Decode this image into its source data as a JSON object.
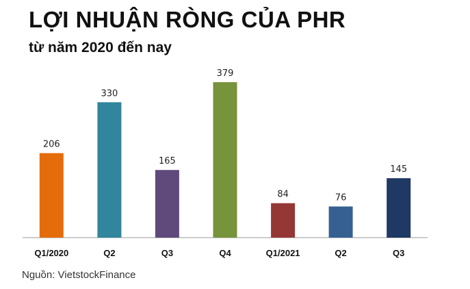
{
  "header": {
    "title": "LỢI NHUẬN RÒNG CỦA PHR",
    "subtitle": "từ năm 2020 đến nay"
  },
  "footer": {
    "source": "Nguồn: VietstockFinance"
  },
  "chart_data": {
    "type": "bar",
    "title": "LỢI NHUẬN RÒNG CỦA PHR",
    "subtitle": "từ năm 2020 đến nay",
    "categories": [
      "Q1/2020",
      "Q2",
      "Q3",
      "Q4",
      "Q1/2021",
      "Q2",
      "Q3"
    ],
    "values": [
      206,
      330,
      165,
      379,
      84,
      76,
      145
    ],
    "colors": [
      "#e46c0a",
      "#31859c",
      "#604a7b",
      "#77933c",
      "#953735",
      "#376092",
      "#1f3864"
    ],
    "ylim": [
      0,
      379
    ],
    "grid": false,
    "legend": "none",
    "data_labels": true
  }
}
